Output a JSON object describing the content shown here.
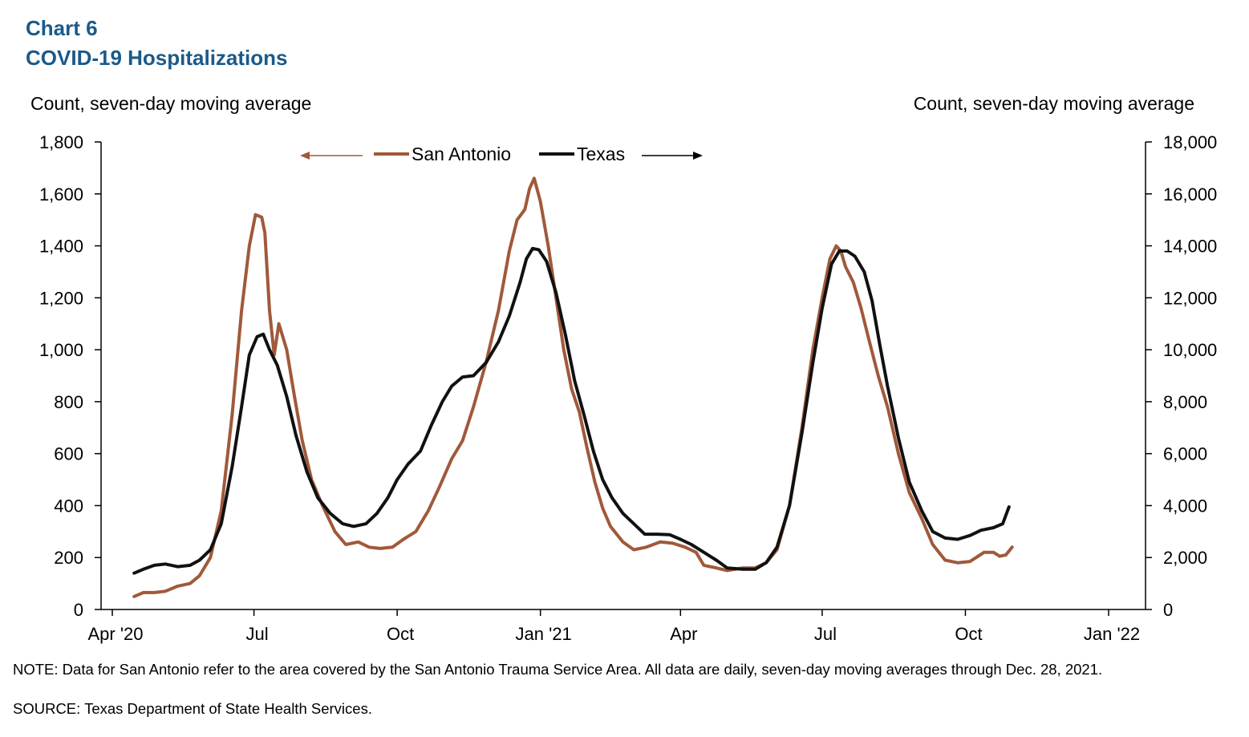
{
  "header": {
    "chart_number": "Chart 6",
    "title": "COVID-19 Hospitalizations"
  },
  "axis_labels": {
    "left": "Count, seven-day moving average",
    "right": "Count, seven-day moving average"
  },
  "legend": {
    "san_antonio": "San Antonio",
    "texas": "Texas"
  },
  "footer": {
    "note": "NOTE: Data for San Antonio refer to the area covered by the San Antonio Trauma Service Area. All data are daily, seven-day moving averages through Dec. 28, 2021.",
    "source": "SOURCE: Texas Department of State Health Services."
  },
  "colors": {
    "san_antonio": "#a0593a",
    "texas": "#111111",
    "title": "#1a5a8a"
  },
  "chart_data": {
    "type": "line",
    "title": "COVID-19 Hospitalizations",
    "x_ticks": [
      "Apr '20",
      "Jul",
      "Oct",
      "Jan '21",
      "Apr",
      "Jul",
      "Oct",
      "Jan '22"
    ],
    "x_tick_days": [
      0,
      91,
      183,
      275,
      365,
      456,
      548,
      640
    ],
    "xlim_days": [
      0,
      640
    ],
    "y_left": {
      "label": "Count, seven-day moving average",
      "ylim": [
        0,
        1800
      ],
      "ticks": [
        0,
        200,
        400,
        600,
        800,
        1000,
        1200,
        1400,
        1600,
        1800
      ],
      "tick_labels": [
        "0",
        "200",
        "400",
        "600",
        "800",
        "1,000",
        "1,200",
        "1,400",
        "1,600",
        "1,800"
      ]
    },
    "y_right": {
      "label": "Count, seven-day moving average",
      "ylim": [
        0,
        18000
      ],
      "ticks": [
        0,
        2000,
        4000,
        6000,
        8000,
        10000,
        12000,
        14000,
        16000,
        18000
      ],
      "tick_labels": [
        "0",
        "2,000",
        "4,000",
        "6,000",
        "8,000",
        "10,000",
        "12,000",
        "14,000",
        "16,000",
        "18,000"
      ]
    },
    "series": [
      {
        "name": "San Antonio",
        "axis": "left",
        "points": [
          [
            14,
            50
          ],
          [
            20,
            65
          ],
          [
            27,
            65
          ],
          [
            34,
            70
          ],
          [
            42,
            90
          ],
          [
            50,
            100
          ],
          [
            56,
            130
          ],
          [
            63,
            200
          ],
          [
            70,
            380
          ],
          [
            77,
            750
          ],
          [
            83,
            1150
          ],
          [
            88,
            1400
          ],
          [
            92,
            1520
          ],
          [
            96,
            1510
          ],
          [
            98,
            1450
          ],
          [
            101,
            1150
          ],
          [
            104,
            980
          ],
          [
            107,
            1100
          ],
          [
            112,
            1000
          ],
          [
            117,
            820
          ],
          [
            122,
            650
          ],
          [
            128,
            500
          ],
          [
            135,
            400
          ],
          [
            143,
            300
          ],
          [
            150,
            250
          ],
          [
            158,
            260
          ],
          [
            165,
            240
          ],
          [
            172,
            235
          ],
          [
            180,
            240
          ],
          [
            187,
            270
          ],
          [
            195,
            300
          ],
          [
            203,
            380
          ],
          [
            210,
            470
          ],
          [
            218,
            580
          ],
          [
            225,
            650
          ],
          [
            232,
            780
          ],
          [
            240,
            950
          ],
          [
            248,
            1150
          ],
          [
            255,
            1380
          ],
          [
            260,
            1500
          ],
          [
            265,
            1540
          ],
          [
            268,
            1620
          ],
          [
            271,
            1660
          ],
          [
            275,
            1570
          ],
          [
            280,
            1400
          ],
          [
            285,
            1200
          ],
          [
            290,
            1000
          ],
          [
            295,
            850
          ],
          [
            300,
            760
          ],
          [
            305,
            620
          ],
          [
            310,
            490
          ],
          [
            315,
            390
          ],
          [
            320,
            320
          ],
          [
            328,
            260
          ],
          [
            335,
            230
          ],
          [
            343,
            240
          ],
          [
            352,
            260
          ],
          [
            360,
            255
          ],
          [
            368,
            240
          ],
          [
            375,
            220
          ],
          [
            380,
            170
          ],
          [
            388,
            160
          ],
          [
            395,
            150
          ],
          [
            405,
            160
          ],
          [
            413,
            160
          ],
          [
            420,
            180
          ],
          [
            427,
            230
          ],
          [
            435,
            400
          ],
          [
            443,
            700
          ],
          [
            450,
            1000
          ],
          [
            456,
            1200
          ],
          [
            461,
            1350
          ],
          [
            465,
            1400
          ],
          [
            468,
            1380
          ],
          [
            471,
            1320
          ],
          [
            476,
            1260
          ],
          [
            481,
            1160
          ],
          [
            486,
            1040
          ],
          [
            492,
            900
          ],
          [
            498,
            780
          ],
          [
            505,
            600
          ],
          [
            512,
            450
          ],
          [
            520,
            350
          ],
          [
            527,
            250
          ],
          [
            535,
            190
          ],
          [
            543,
            180
          ],
          [
            551,
            185
          ],
          [
            560,
            220
          ],
          [
            566,
            220
          ],
          [
            570,
            205
          ],
          [
            574,
            210
          ],
          [
            578,
            240
          ]
        ]
      },
      {
        "name": "Texas",
        "axis": "right",
        "points": [
          [
            14,
            1400
          ],
          [
            20,
            1550
          ],
          [
            27,
            1700
          ],
          [
            34,
            1750
          ],
          [
            42,
            1650
          ],
          [
            50,
            1700
          ],
          [
            56,
            1900
          ],
          [
            63,
            2300
          ],
          [
            70,
            3300
          ],
          [
            77,
            5500
          ],
          [
            83,
            7800
          ],
          [
            88,
            9800
          ],
          [
            93,
            10500
          ],
          [
            97,
            10600
          ],
          [
            101,
            10000
          ],
          [
            106,
            9400
          ],
          [
            112,
            8200
          ],
          [
            118,
            6700
          ],
          [
            125,
            5300
          ],
          [
            132,
            4300
          ],
          [
            140,
            3700
          ],
          [
            148,
            3300
          ],
          [
            155,
            3200
          ],
          [
            163,
            3300
          ],
          [
            170,
            3700
          ],
          [
            177,
            4300
          ],
          [
            183,
            5000
          ],
          [
            190,
            5600
          ],
          [
            198,
            6100
          ],
          [
            205,
            7100
          ],
          [
            212,
            8000
          ],
          [
            218,
            8600
          ],
          [
            225,
            8950
          ],
          [
            232,
            9000
          ],
          [
            240,
            9500
          ],
          [
            248,
            10300
          ],
          [
            255,
            11300
          ],
          [
            262,
            12600
          ],
          [
            266,
            13500
          ],
          [
            270,
            13900
          ],
          [
            274,
            13850
          ],
          [
            279,
            13400
          ],
          [
            285,
            12200
          ],
          [
            291,
            10600
          ],
          [
            297,
            8800
          ],
          [
            303,
            7500
          ],
          [
            309,
            6100
          ],
          [
            315,
            5000
          ],
          [
            321,
            4300
          ],
          [
            328,
            3700
          ],
          [
            335,
            3300
          ],
          [
            342,
            2900
          ],
          [
            350,
            2900
          ],
          [
            358,
            2880
          ],
          [
            365,
            2700
          ],
          [
            372,
            2500
          ],
          [
            380,
            2200
          ],
          [
            388,
            1900
          ],
          [
            395,
            1600
          ],
          [
            405,
            1550
          ],
          [
            413,
            1550
          ],
          [
            420,
            1800
          ],
          [
            427,
            2400
          ],
          [
            435,
            4000
          ],
          [
            443,
            6800
          ],
          [
            450,
            9500
          ],
          [
            456,
            11600
          ],
          [
            462,
            13300
          ],
          [
            467,
            13800
          ],
          [
            472,
            13800
          ],
          [
            477,
            13600
          ],
          [
            483,
            13000
          ],
          [
            488,
            11900
          ],
          [
            493,
            10200
          ],
          [
            498,
            8600
          ],
          [
            505,
            6600
          ],
          [
            512,
            4900
          ],
          [
            520,
            3800
          ],
          [
            527,
            3000
          ],
          [
            535,
            2750
          ],
          [
            543,
            2700
          ],
          [
            551,
            2850
          ],
          [
            558,
            3050
          ],
          [
            566,
            3150
          ],
          [
            572,
            3300
          ],
          [
            576,
            3950
          ]
        ]
      }
    ]
  }
}
